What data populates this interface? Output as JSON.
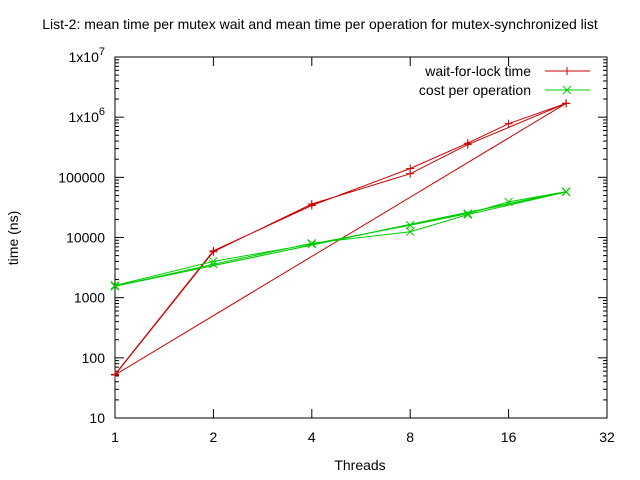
{
  "chart_data": {
    "type": "line",
    "title": "List-2: mean time per mutex wait and mean time per operation for mutex-synchronized list",
    "xlabel": "Threads",
    "ylabel": "time (ns)",
    "x_scale": "log2",
    "y_scale": "log10",
    "xlim": [
      1,
      32
    ],
    "ylim": [
      10,
      10000000
    ],
    "x_ticks": [
      {
        "value": 1,
        "label": "1"
      },
      {
        "value": 2,
        "label": "2"
      },
      {
        "value": 4,
        "label": "4"
      },
      {
        "value": 8,
        "label": "8"
      },
      {
        "value": 16,
        "label": "16"
      },
      {
        "value": 32,
        "label": "32"
      }
    ],
    "y_ticks": [
      {
        "value": 10,
        "label": "10"
      },
      {
        "value": 100,
        "label": "100"
      },
      {
        "value": 1000,
        "label": "1000"
      },
      {
        "value": 10000,
        "label": "10000"
      },
      {
        "value": 100000,
        "label": "100000"
      },
      {
        "value": 1000000,
        "label": "1x10",
        "sup": "6"
      },
      {
        "value": 10000000,
        "label": "1x10",
        "sup": "7"
      }
    ],
    "grid": false,
    "legend_position": "top-right",
    "series": [
      {
        "name": "wait-for-lock time",
        "color": "#cc0000",
        "marker": "plus",
        "points": [
          {
            "x": 1,
            "y": 53
          },
          {
            "x": 2,
            "y": 6000
          },
          {
            "x": 4,
            "y": 34000
          },
          {
            "x": 8,
            "y": 140000
          },
          {
            "x": 12,
            "y": 370000
          },
          {
            "x": 16,
            "y": 780000
          },
          {
            "x": 24,
            "y": 1700000
          },
          {
            "x": 1,
            "y": 52
          },
          {
            "x": 2,
            "y": 5800
          },
          {
            "x": 4,
            "y": 36000
          },
          {
            "x": 8,
            "y": 115000
          },
          {
            "x": 12,
            "y": 350000
          },
          {
            "x": 24,
            "y": 1700000
          },
          {
            "x": 1,
            "y": 52
          }
        ]
      },
      {
        "name": "cost per operation",
        "color": "#00cc00",
        "marker": "cross",
        "points": [
          {
            "x": 1,
            "y": 1600
          },
          {
            "x": 2,
            "y": 4000
          },
          {
            "x": 4,
            "y": 7800
          },
          {
            "x": 8,
            "y": 16000
          },
          {
            "x": 12,
            "y": 25000
          },
          {
            "x": 16,
            "y": 39000
          },
          {
            "x": 24,
            "y": 58000
          },
          {
            "x": 1,
            "y": 1550
          },
          {
            "x": 2,
            "y": 3600
          },
          {
            "x": 4,
            "y": 8000
          },
          {
            "x": 8,
            "y": 12500
          },
          {
            "x": 12,
            "y": 24000
          },
          {
            "x": 24,
            "y": 57000
          },
          {
            "x": 1,
            "y": 1550
          }
        ]
      }
    ]
  }
}
